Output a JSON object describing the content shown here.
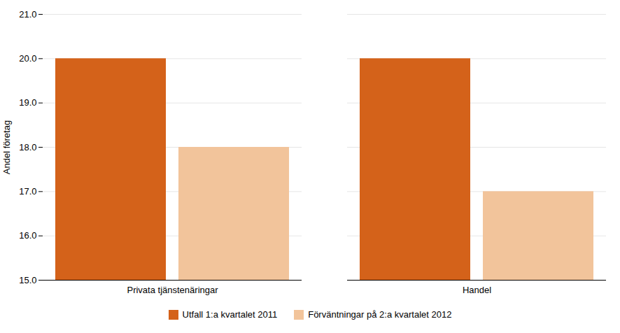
{
  "chart_data": {
    "type": "bar",
    "categories": [
      "Privata tjänstenäringar",
      "Handel"
    ],
    "series": [
      {
        "name": "Utfall 1:a kvartalet 2011",
        "color": "#D4621A",
        "values": [
          20,
          20
        ]
      },
      {
        "name": "Förväntningar på 2:a kvartalet 2012",
        "color": "#F2C49B",
        "values": [
          18,
          17
        ]
      }
    ],
    "ylabel": "Andel företag",
    "ylim": [
      15,
      21
    ],
    "yticks": [
      15,
      16,
      17,
      18,
      19,
      20,
      21
    ],
    "grid": true,
    "legend": "bottom"
  }
}
